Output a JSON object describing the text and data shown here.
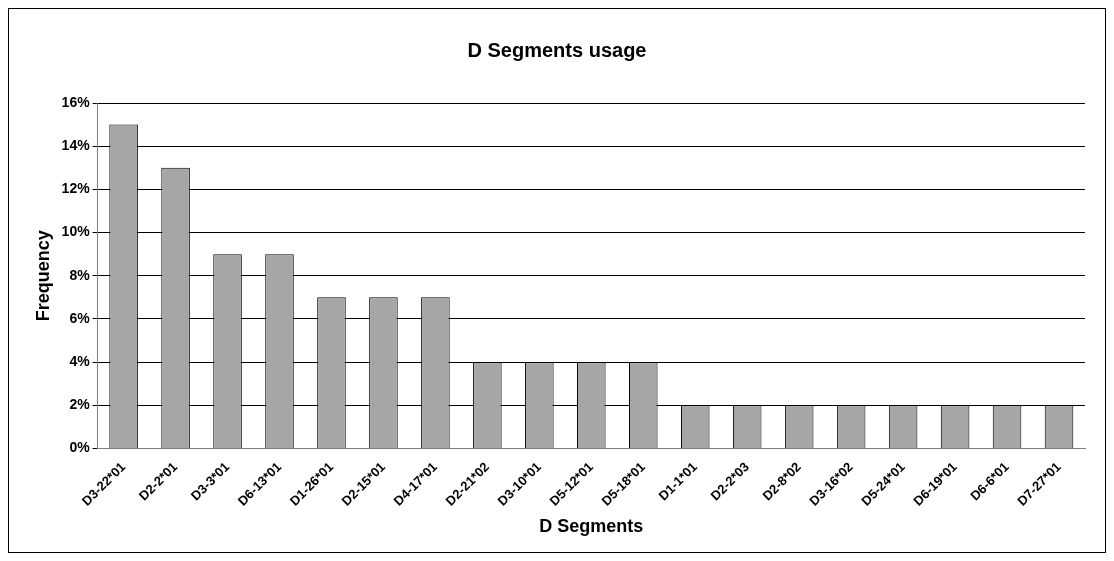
{
  "chart_data": {
    "type": "bar",
    "title": "D Segments usage",
    "xlabel": "D Segments",
    "ylabel": "Frequency",
    "categories": [
      "D3-22*01",
      "D2-2*01",
      "D3-3*01",
      "D6-13*01",
      "D1-26*01",
      "D2-15*01",
      "D4-17*01",
      "D2-21*02",
      "D3-10*01",
      "D5-12*01",
      "D5-18*01",
      "D1-1*01",
      "D2-2*03",
      "D2-8*02",
      "D3-16*02",
      "D5-24*01",
      "D6-19*01",
      "D6-6*01",
      "D7-27*01"
    ],
    "values": [
      15,
      13,
      9,
      9,
      7,
      7,
      7,
      4,
      4,
      4,
      4,
      2,
      2,
      2,
      2,
      2,
      2,
      2,
      2
    ],
    "color": "#a6a6a6",
    "ylim": [
      0,
      16
    ],
    "yticks": [
      {
        "value": 0,
        "label": "0%"
      },
      {
        "value": 2,
        "label": "2%"
      },
      {
        "value": 4,
        "label": "4%"
      },
      {
        "value": 6,
        "label": "6%"
      },
      {
        "value": 8,
        "label": "8%"
      },
      {
        "value": 10,
        "label": "10%"
      },
      {
        "value": 12,
        "label": "12%"
      },
      {
        "value": 14,
        "label": "14%"
      },
      {
        "value": 16,
        "label": "16%"
      }
    ],
    "grid": "y",
    "legend": false
  }
}
